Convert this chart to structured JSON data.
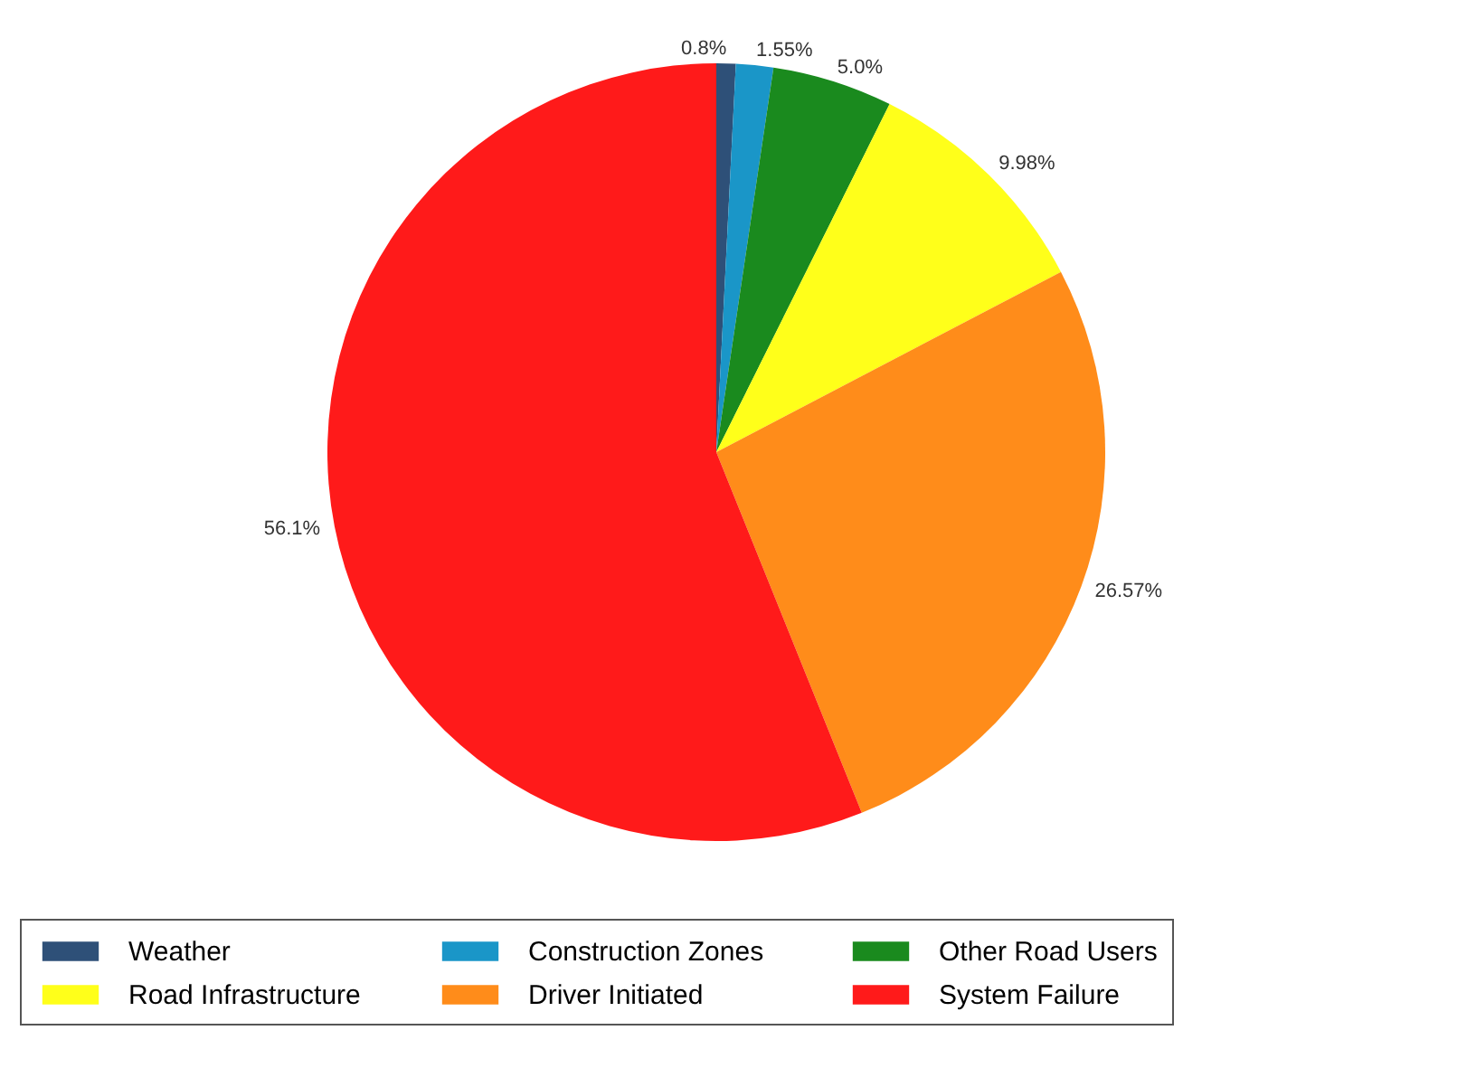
{
  "chart_data": {
    "type": "pie",
    "categories": [
      "Weather",
      "Construction  Zones",
      "Other Road Users",
      "Road Infrastructure",
      "Driver Initiated",
      "System Failure"
    ],
    "values": [
      0.8,
      1.55,
      5.0,
      9.98,
      26.57,
      56.1
    ],
    "value_labels": [
      "0.8%",
      "1.55%",
      "5.0%",
      "9.98%",
      "26.57%",
      "56.1%"
    ],
    "colors": [
      "#2e5078",
      "#1a96c8",
      "#1a8a1e",
      "#ffff1a",
      "#ff8c1a",
      "#ff1a1a"
    ],
    "legend": "bottom"
  }
}
